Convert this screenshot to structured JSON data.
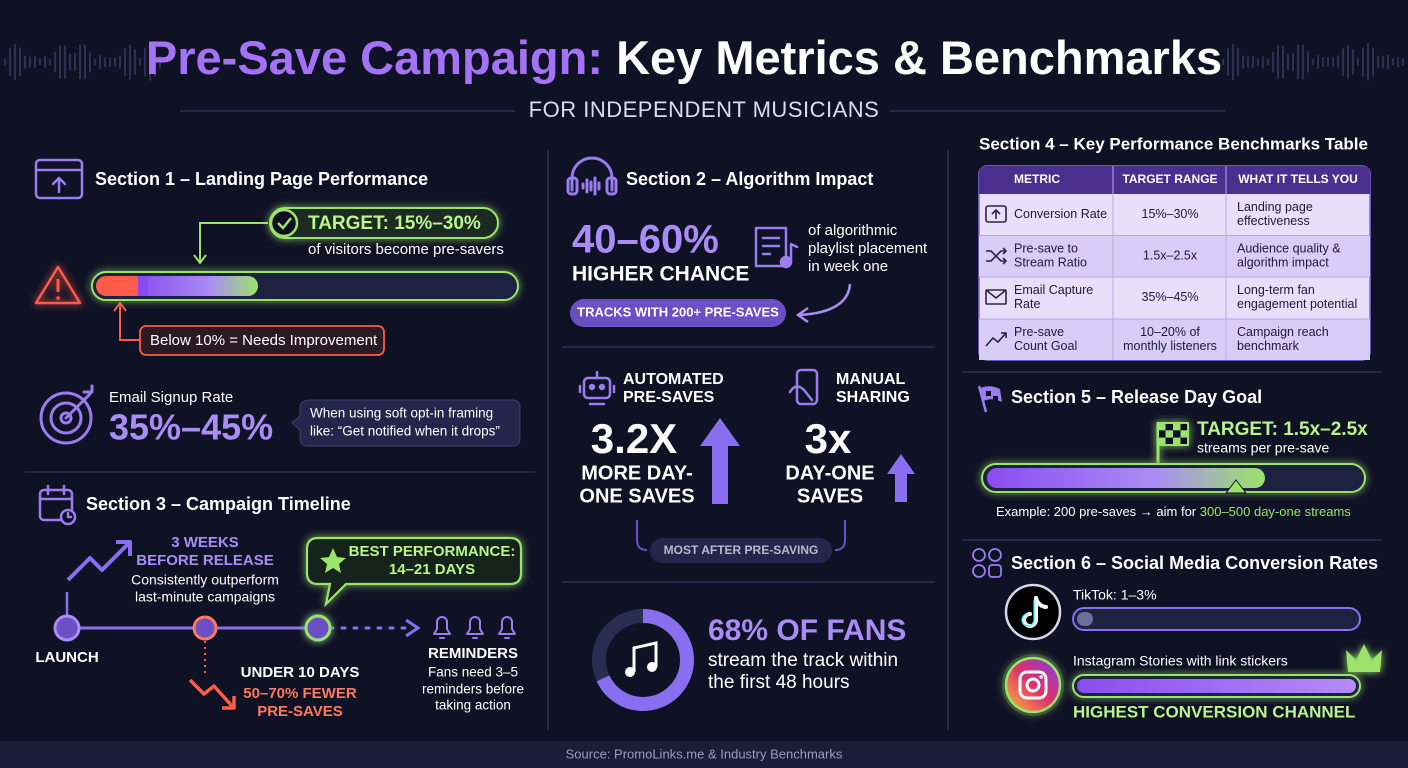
{
  "header": {
    "title_lead": "Pre-Save Campaign:",
    "title_rest": "Key Metrics & Benchmarks",
    "subtitle": "FOR INDEPENDENT MUSICIANS"
  },
  "section1": {
    "title": "Section 1 – Landing Page Performance",
    "target": "TARGET: 15%–30%",
    "target_note": "of visitors become pre-savers",
    "warning": "Below 10% = Needs Improvement",
    "email_label": "Email Signup Rate",
    "email_value": "35%–45%",
    "email_note": [
      "When using soft opt-in framing",
      "like: “Get notified when it drops”"
    ]
  },
  "section2": {
    "title": "Section 2 – Algorithm Impact",
    "stat": "40–60%",
    "stat_label": "HIGHER CHANCE",
    "placement_note": [
      "of algorithmic",
      "playlist placement",
      "in week one"
    ],
    "tracks_pill": "TRACKS WITH 200+ PRE-SAVES",
    "automated": {
      "label": [
        "AUTOMATED",
        "PRE-SAVES"
      ],
      "value": "3.2X",
      "result": [
        "MORE DAY-",
        "ONE SAVES"
      ]
    },
    "manual": {
      "label": [
        "MANUAL",
        "SHARING"
      ],
      "value": "3x",
      "result": [
        "DAY-ONE",
        "SAVES"
      ]
    },
    "bracket_label": "MOST AFTER PRE-SAVING",
    "fans_stat": "68% OF FANS",
    "fans_note": [
      "stream the track within",
      "the first 48 hours"
    ]
  },
  "section3": {
    "title": "Section 3 – Campaign Timeline",
    "launch": "LAUNCH",
    "three_weeks": {
      "heading": [
        "3 WEEKS",
        "BEFORE RELEASE"
      ],
      "note": [
        "Consistently outperform",
        "last-minute campaigns"
      ]
    },
    "best": [
      "BEST PERFORMANCE:",
      "14–21 DAYS"
    ],
    "under_ten": {
      "heading": "UNDER 10 DAYS",
      "result": [
        "50–70% FEWER",
        "PRE-SAVES"
      ]
    },
    "reminders": {
      "heading": "REMINDERS",
      "note": [
        "Fans need 3–5",
        "reminders before",
        "taking action"
      ]
    }
  },
  "section4": {
    "title": "Section 4 – Key Performance Benchmarks Table",
    "table": {
      "header": [
        "METRIC",
        "TARGET RANGE",
        "WHAT IT TELLS YOU"
      ],
      "rows": [
        [
          [
            "Conversion Rate"
          ],
          [
            "15%–30%"
          ],
          [
            "Landing page",
            "effectiveness"
          ]
        ],
        [
          [
            "Pre-save to",
            "Stream Ratio"
          ],
          [
            "1.5x–2.5x"
          ],
          [
            "Audience quality &",
            "algorithm impact"
          ]
        ],
        [
          [
            "Email Capture",
            "Rate"
          ],
          [
            "35%–45%"
          ],
          [
            "Long-term fan",
            "engagement potential"
          ]
        ],
        [
          [
            "Pre-save",
            "Count Goal"
          ],
          [
            "10–20% of",
            "monthly listeners"
          ],
          [
            "Campaign reach",
            "benchmark"
          ]
        ]
      ]
    }
  },
  "section5": {
    "title": "Section 5 – Release Day Goal",
    "target": "TARGET: 1.5x–2.5x",
    "target_note": "streams per pre-save",
    "example": "Example: 200 pre-saves → aim for ",
    "example_highlight": "300–500 day-one streams"
  },
  "section6": {
    "title": "Section 6 – Social Media Conversion Rates",
    "tiktok": "TikTok: 1–3%",
    "instagram": "Instagram Stories with link stickers",
    "highest": "HIGHEST CONVERSION CHANNEL"
  },
  "footer": {
    "source": "Source: PromoLinks.me & Industry Benchmarks"
  }
}
